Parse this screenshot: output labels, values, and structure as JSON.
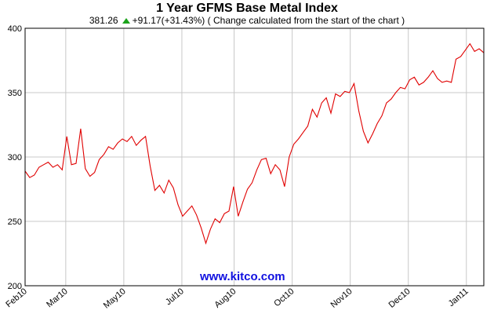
{
  "chart_data": {
    "type": "line",
    "title": "1 Year GFMS Base Metal Index",
    "summary": {
      "last_value": "381.26",
      "change": "+91.17(+31.43%)",
      "note": "( Change calculated from the start of the chart )"
    },
    "watermark": "www.kitco.com",
    "xlabel": "",
    "ylabel": "",
    "ylim": [
      200,
      400
    ],
    "y_ticks": [
      200,
      250,
      300,
      350,
      400
    ],
    "x_tick_labels": [
      "Feb10",
      "Mar10",
      "May10",
      "Jul10",
      "Aug10",
      "Oct10",
      "Nov10",
      "Dec10",
      "Jan11"
    ],
    "x_tick_positions": [
      0,
      7,
      17,
      27,
      36,
      46,
      56,
      66,
      76
    ],
    "x_max": 79,
    "grid": true,
    "line_color": "#e00000",
    "series": [
      {
        "values": [
          289,
          284,
          286,
          292,
          294,
          296,
          292,
          294,
          290,
          316,
          294,
          295,
          322,
          291,
          285,
          288,
          298,
          302,
          308,
          306,
          311,
          314,
          312,
          316,
          309,
          313,
          316,
          293,
          274,
          278,
          272,
          282,
          276,
          263,
          254,
          258,
          262,
          255,
          245,
          233,
          244,
          252,
          249,
          256,
          258,
          277,
          254,
          265,
          275,
          280,
          290,
          298,
          299,
          287,
          294,
          290,
          277,
          300,
          310,
          314,
          319,
          324,
          337,
          331,
          342,
          346,
          334,
          349,
          347,
          351,
          350,
          357,
          336,
          320,
          311,
          318,
          326,
          332,
          342,
          345,
          350,
          354,
          353,
          360,
          362,
          356,
          358,
          362,
          367,
          361,
          358,
          359,
          358,
          376,
          378,
          383,
          388,
          382,
          384,
          381
        ]
      }
    ]
  }
}
